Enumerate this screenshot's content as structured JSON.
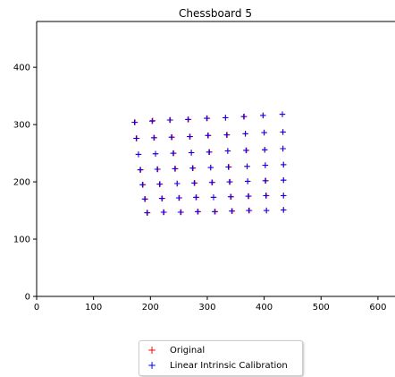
{
  "chart_data": {
    "type": "scatter",
    "title": "Chessboard 5",
    "xlabel": "",
    "ylabel": "",
    "xlim": [
      0,
      630
    ],
    "ylim": [
      0,
      480
    ],
    "xticks": [
      0,
      100,
      200,
      300,
      400,
      500,
      600
    ],
    "yticks": [
      0,
      100,
      200,
      300,
      400
    ],
    "grid": false,
    "legend_position": "bottom-center",
    "series": [
      {
        "name": "Original",
        "marker": "+",
        "color": "#ff0000",
        "points": [
          [
            173,
            304
          ],
          [
            204,
            307
          ],
          [
            235,
            308
          ],
          [
            267,
            309
          ],
          [
            300,
            311
          ],
          [
            332,
            312
          ],
          [
            365,
            314
          ],
          [
            398,
            316
          ],
          [
            432,
            318
          ],
          [
            176,
            276
          ],
          [
            207,
            277
          ],
          [
            238,
            278
          ],
          [
            270,
            279
          ],
          [
            302,
            281
          ],
          [
            335,
            282
          ],
          [
            367,
            284
          ],
          [
            400,
            286
          ],
          [
            433,
            287
          ],
          [
            179,
            248
          ],
          [
            209,
            249
          ],
          [
            241,
            250
          ],
          [
            272,
            251
          ],
          [
            304,
            252
          ],
          [
            336,
            254
          ],
          [
            369,
            255
          ],
          [
            401,
            256
          ],
          [
            433,
            258
          ],
          [
            183,
            221
          ],
          [
            213,
            222
          ],
          [
            244,
            223
          ],
          [
            275,
            224
          ],
          [
            306,
            225
          ],
          [
            338,
            226
          ],
          [
            370,
            227
          ],
          [
            402,
            229
          ],
          [
            434,
            230
          ],
          [
            187,
            195
          ],
          [
            217,
            196
          ],
          [
            247,
            197
          ],
          [
            278,
            198
          ],
          [
            309,
            199
          ],
          [
            340,
            200
          ],
          [
            371,
            201
          ],
          [
            403,
            202
          ],
          [
            434,
            203
          ],
          [
            191,
            170
          ],
          [
            221,
            171
          ],
          [
            251,
            172
          ],
          [
            281,
            173
          ],
          [
            311,
            173
          ],
          [
            342,
            174
          ],
          [
            373,
            175
          ],
          [
            404,
            176
          ],
          [
            434,
            176
          ],
          [
            195,
            146
          ],
          [
            224,
            147
          ],
          [
            254,
            147
          ],
          [
            284,
            148
          ],
          [
            314,
            148
          ],
          [
            344,
            149
          ],
          [
            374,
            150
          ],
          [
            404,
            150
          ],
          [
            434,
            151
          ]
        ]
      },
      {
        "name": "Linear Intrinsic Calibration",
        "marker": "+",
        "color": "#0000ff",
        "points": [
          [
            172,
            304
          ],
          [
            203,
            306
          ],
          [
            234,
            308
          ],
          [
            266,
            309
          ],
          [
            299,
            311
          ],
          [
            332,
            312
          ],
          [
            364,
            314
          ],
          [
            398,
            316
          ],
          [
            432,
            318
          ],
          [
            175,
            276
          ],
          [
            206,
            277
          ],
          [
            237,
            278
          ],
          [
            269,
            279
          ],
          [
            301,
            281
          ],
          [
            334,
            282
          ],
          [
            367,
            284
          ],
          [
            400,
            286
          ],
          [
            433,
            287
          ],
          [
            179,
            248
          ],
          [
            209,
            249
          ],
          [
            240,
            250
          ],
          [
            272,
            251
          ],
          [
            303,
            252
          ],
          [
            336,
            254
          ],
          [
            368,
            255
          ],
          [
            401,
            256
          ],
          [
            433,
            258
          ],
          [
            182,
            221
          ],
          [
            212,
            222
          ],
          [
            243,
            223
          ],
          [
            274,
            224
          ],
          [
            306,
            225
          ],
          [
            337,
            226
          ],
          [
            370,
            227
          ],
          [
            402,
            229
          ],
          [
            434,
            230
          ],
          [
            186,
            195
          ],
          [
            216,
            196
          ],
          [
            247,
            197
          ],
          [
            277,
            198
          ],
          [
            308,
            199
          ],
          [
            339,
            200
          ],
          [
            371,
            201
          ],
          [
            402,
            202
          ],
          [
            434,
            203
          ],
          [
            190,
            170
          ],
          [
            220,
            171
          ],
          [
            250,
            172
          ],
          [
            280,
            173
          ],
          [
            311,
            173
          ],
          [
            341,
            174
          ],
          [
            372,
            175
          ],
          [
            403,
            176
          ],
          [
            434,
            176
          ],
          [
            194,
            146
          ],
          [
            223,
            147
          ],
          [
            253,
            147
          ],
          [
            283,
            148
          ],
          [
            313,
            148
          ],
          [
            343,
            149
          ],
          [
            373,
            150
          ],
          [
            404,
            150
          ],
          [
            434,
            151
          ]
        ]
      }
    ]
  }
}
